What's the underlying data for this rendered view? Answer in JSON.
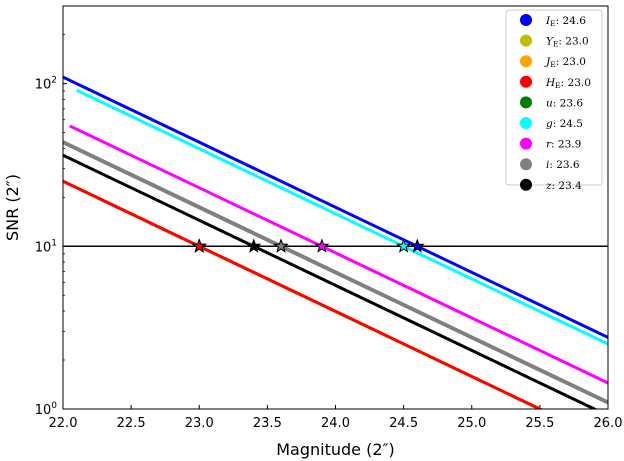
{
  "chart_data": {
    "type": "scatter",
    "xlabel": "Magnitude (2″)",
    "ylabel": "SNR (2″)",
    "xlim": [
      22.0,
      26.0
    ],
    "ylim": [
      1,
      300
    ],
    "yscale": "log",
    "x_ticks": [
      22.0,
      22.5,
      23.0,
      23.5,
      24.0,
      24.5,
      25.0,
      25.5,
      26.0
    ],
    "x_tick_labels": [
      "22.0",
      "22.5",
      "23.0",
      "23.5",
      "24.0",
      "24.5",
      "25.0",
      "25.5",
      "26.0"
    ],
    "y_ticks": [
      1,
      10,
      100
    ],
    "y_tick_labels": [
      {
        "base": "10",
        "exp": "0"
      },
      {
        "base": "10",
        "exp": "1"
      },
      {
        "base": "10",
        "exp": "2"
      }
    ],
    "reference_line": {
      "y": 10,
      "color": "#000000"
    },
    "legend_position": "top-right",
    "series": [
      {
        "name": "I_E",
        "label_main": "I",
        "label_sub": "E",
        "limit": "24.6",
        "color": "#0000ff",
        "x_start": 22.0,
        "x_end": 26.0,
        "limiting_mag": 24.6,
        "dash": false
      },
      {
        "name": "Y_E",
        "label_main": "Y",
        "label_sub": "E",
        "limit": "23.0",
        "color": "#bfbf00",
        "x_start": 22.0,
        "x_end": 25.55,
        "limiting_mag": 23.0,
        "dash": false
      },
      {
        "name": "J_E",
        "label_main": "J",
        "label_sub": "E",
        "limit": "23.0",
        "color": "#ffa500",
        "x_start": 22.0,
        "x_end": 25.55,
        "limiting_mag": 23.0,
        "dash": false
      },
      {
        "name": "H_E",
        "label_main": "H",
        "label_sub": "E",
        "limit": "23.0",
        "color": "#ff0000",
        "x_start": 22.0,
        "x_end": 25.55,
        "limiting_mag": 23.0,
        "dash": false
      },
      {
        "name": "u",
        "label_main": "u",
        "label_sub": "",
        "limit": "23.6",
        "color": "#008000",
        "x_start": 22.8,
        "x_end": 26.0,
        "limiting_mag": 23.6,
        "dash": true
      },
      {
        "name": "g",
        "label_main": "g",
        "label_sub": "",
        "limit": "24.5",
        "color": "#00ffff",
        "x_start": 22.1,
        "x_end": 26.0,
        "limiting_mag": 24.5,
        "dash": false
      },
      {
        "name": "r",
        "label_main": "r",
        "label_sub": "",
        "limit": "23.9",
        "color": "#ff00ff",
        "x_start": 22.05,
        "x_end": 26.0,
        "limiting_mag": 23.9,
        "dash": false
      },
      {
        "name": "i",
        "label_main": "i",
        "label_sub": "",
        "limit": "23.6",
        "color": "#808080",
        "x_start": 22.0,
        "x_end": 26.0,
        "limiting_mag": 23.6,
        "dash": false
      },
      {
        "name": "z",
        "label_main": "z",
        "label_sub": "",
        "limit": "23.4",
        "color": "#000000",
        "x_start": 22.0,
        "x_end": 26.0,
        "limiting_mag": 23.4,
        "dash": false
      }
    ]
  }
}
